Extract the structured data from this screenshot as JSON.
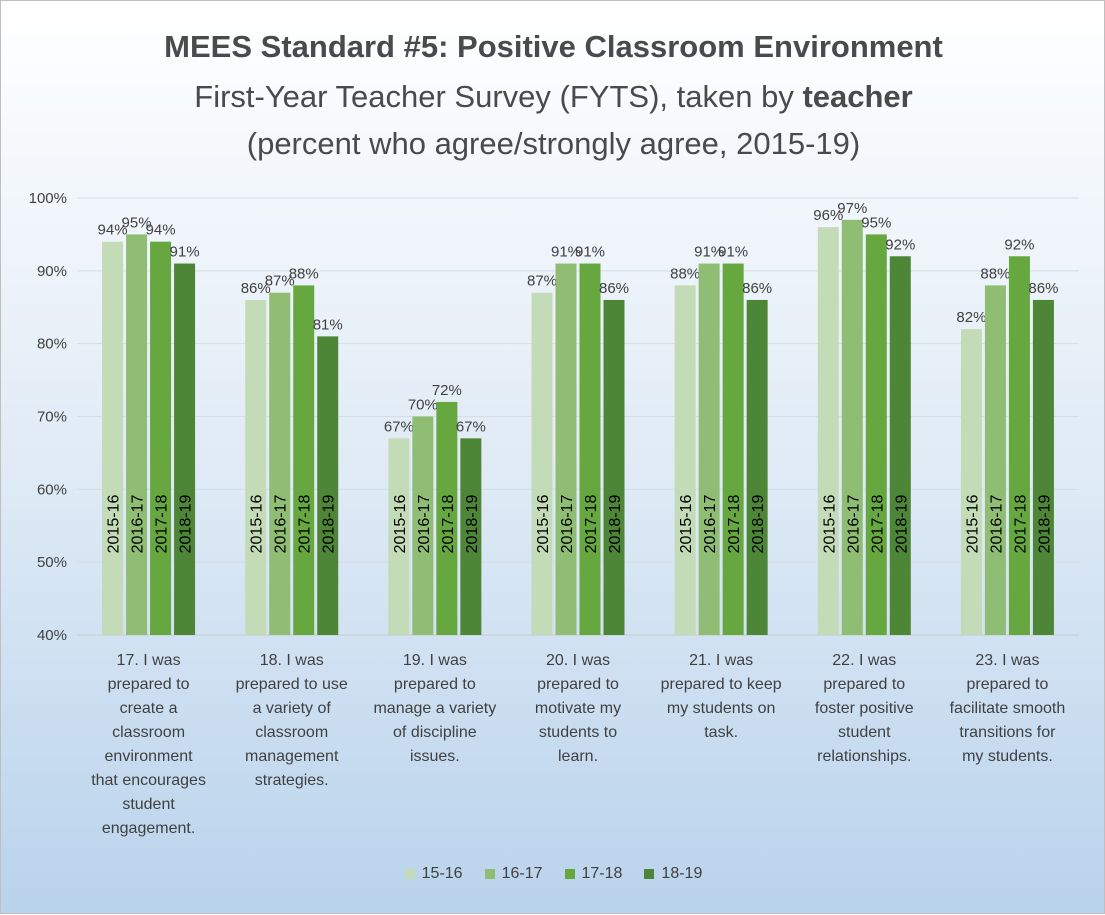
{
  "chart_data": {
    "type": "bar",
    "title": "MEES Standard #5: Positive Classroom Environment",
    "subtitle_prefix": "First-Year Teacher Survey (FYTS), taken by ",
    "subtitle_bold": "teacher",
    "subtitle_line2": "(percent who agree/strongly agree, 2015-19)",
    "ylim": [
      40,
      100
    ],
    "yticks": [
      "40%",
      "50%",
      "60%",
      "70%",
      "80%",
      "90%",
      "100%"
    ],
    "ytick_values": [
      40,
      50,
      60,
      70,
      80,
      90,
      100
    ],
    "categories": [
      "17. I was prepared to create a classroom environment that encourages student engagement.",
      "18. I was prepared to use a variety of classroom management strategies.",
      "19. I was prepared to manage a variety of discipline issues.",
      "20. I was prepared to motivate my students to learn.",
      "21. I was prepared to keep my students on task.",
      "22. I was prepared to foster positive student relationships.",
      "23. I was prepared to facilitate smooth transitions for my students."
    ],
    "category_lines": [
      [
        "17. I was",
        "prepared to",
        "create a",
        "classroom",
        "environment",
        "that encourages",
        "student",
        "engagement."
      ],
      [
        "18. I was",
        "prepared to use",
        "a variety of",
        "classroom",
        "management",
        "strategies."
      ],
      [
        "19. I was",
        "prepared to",
        "manage a variety",
        "of discipline",
        "issues."
      ],
      [
        "20. I was",
        "prepared to",
        "motivate my",
        "students to",
        "learn."
      ],
      [
        "21. I was",
        "prepared to keep",
        "my students on",
        "task."
      ],
      [
        "22. I was",
        "prepared to",
        "foster positive",
        "student",
        "relationships."
      ],
      [
        "23. I was",
        "prepared to",
        "facilitate smooth",
        "transitions for",
        "my students."
      ]
    ],
    "series": [
      {
        "name": "15-16",
        "bar_label": "2015-16",
        "color": "#c3dcb7",
        "values": [
          94,
          86,
          67,
          87,
          88,
          96,
          82
        ],
        "value_labels": [
          "94%",
          "86%",
          "67%",
          "87%",
          "88%",
          "96%",
          "82%"
        ]
      },
      {
        "name": "16-17",
        "bar_label": "2016-17",
        "color": "#8fbd74",
        "values": [
          95,
          87,
          70,
          91,
          91,
          97,
          88
        ],
        "value_labels": [
          "95%",
          "87%",
          "70%",
          "91%",
          "91%",
          "97%",
          "88%"
        ]
      },
      {
        "name": "17-18",
        "bar_label": "2017-18",
        "color": "#66a83f",
        "values": [
          94,
          88,
          72,
          91,
          91,
          95,
          92
        ],
        "value_labels": [
          "94%",
          "88%",
          "72%",
          "91%",
          "91%",
          "95%",
          "92%"
        ]
      },
      {
        "name": "18-19",
        "bar_label": "2018-19",
        "color": "#4e8638",
        "values": [
          91,
          81,
          67,
          86,
          86,
          92,
          86
        ],
        "value_labels": [
          "91%",
          "81%",
          "67%",
          "86%",
          "86%",
          "92%",
          "86%"
        ]
      }
    ],
    "legend": [
      "15-16",
      "16-17",
      "17-18",
      "18-19"
    ],
    "legend_position": "bottom",
    "grid": true
  }
}
